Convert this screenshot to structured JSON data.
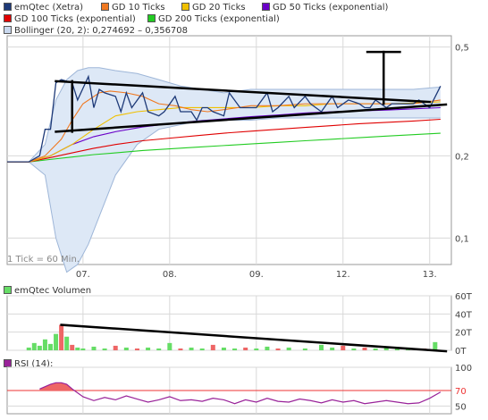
{
  "colors": {
    "price": "#1e3a78",
    "gd10": "#f07820",
    "gd20": "#f0c000",
    "gd50": "#6a00c8",
    "gd100": "#e00000",
    "gd200": "#22cc22",
    "bollinger_fill": "#dde8f6",
    "bollinger_line": "#9eb6d8",
    "volume_up": "#66dd66",
    "volume_down": "#ee6666",
    "rsi_line": "#992299",
    "rsi_fill": "#ee6666",
    "rsi_ref": "#ee3333",
    "grid": "#d8d8d8",
    "trendline": "#000000"
  },
  "legend": {
    "price": "emQtec (Xetra)",
    "gd10": "GD 10 Ticks",
    "gd20": "GD 20 Ticks",
    "gd50": "GD 50 Ticks (exponential)",
    "gd100": "GD 100 Ticks (exponential)",
    "gd200": "GD 200 Ticks (exponential)",
    "bollinger": "Bollinger (20, 2): 0,274692 – 0,356708",
    "volume": "emQtec Volumen",
    "rsi": "RSI (14):"
  },
  "note": "1 Tick = 60 Min.",
  "chart_data": [
    {
      "type": "line",
      "title": "emQtec (Xetra)",
      "x_ticks": [
        "07.",
        "08.",
        "09.",
        "12.",
        "13."
      ],
      "y_ticks": [
        "0,1",
        "0,2",
        "0,5"
      ],
      "y_scale": "log",
      "ylim": [
        0.08,
        0.55
      ],
      "x_range": [
        0,
        82
      ],
      "series": [
        {
          "name": "emQtec (Xetra)",
          "x": [
            0,
            2,
            4,
            6,
            7,
            8,
            9,
            10,
            12,
            13,
            15,
            16,
            17,
            18,
            20,
            21,
            22,
            23,
            25,
            26,
            28,
            29,
            31,
            32,
            34,
            35,
            36,
            37,
            38,
            40,
            41,
            43,
            45,
            46,
            48,
            49,
            50,
            52,
            53,
            55,
            56,
            58,
            60,
            61,
            63,
            65,
            66,
            67,
            68,
            70,
            71,
            73,
            75,
            76,
            77,
            78,
            80
          ],
          "y": [
            0.19,
            0.19,
            0.19,
            0.2,
            0.25,
            0.25,
            0.37,
            0.38,
            0.37,
            0.32,
            0.39,
            0.3,
            0.35,
            0.34,
            0.33,
            0.29,
            0.34,
            0.3,
            0.34,
            0.29,
            0.28,
            0.29,
            0.33,
            0.29,
            0.29,
            0.27,
            0.3,
            0.3,
            0.29,
            0.28,
            0.34,
            0.3,
            0.3,
            0.3,
            0.34,
            0.29,
            0.3,
            0.33,
            0.3,
            0.33,
            0.31,
            0.29,
            0.33,
            0.3,
            0.32,
            0.31,
            0.3,
            0.3,
            0.32,
            0.3,
            0.31,
            0.31,
            0.31,
            0.32,
            0.31,
            0.3,
            0.36
          ]
        },
        {
          "name": "GD 10 Ticks",
          "x": [
            0,
            4,
            7,
            10,
            12,
            14,
            17,
            19,
            22,
            25,
            28,
            31,
            34,
            37,
            40,
            45,
            50,
            55,
            60,
            65,
            70,
            75,
            80
          ],
          "y": [
            0.19,
            0.19,
            0.2,
            0.23,
            0.27,
            0.31,
            0.34,
            0.345,
            0.34,
            0.33,
            0.31,
            0.305,
            0.295,
            0.29,
            0.295,
            0.305,
            0.305,
            0.31,
            0.31,
            0.31,
            0.31,
            0.31,
            0.32
          ]
        },
        {
          "name": "GD 20 Ticks",
          "x": [
            0,
            4,
            8,
            12,
            16,
            20,
            24,
            28,
            32,
            36,
            40,
            45,
            50,
            55,
            60,
            65,
            70,
            75,
            80
          ],
          "y": [
            0.19,
            0.19,
            0.2,
            0.22,
            0.25,
            0.28,
            0.29,
            0.295,
            0.3,
            0.3,
            0.3,
            0.3,
            0.305,
            0.305,
            0.31,
            0.31,
            0.31,
            0.312,
            0.315
          ]
        },
        {
          "name": "GD 50 Ticks (exponential)",
          "x": [
            0,
            4,
            8,
            12,
            16,
            20,
            25,
            30,
            35,
            40,
            45,
            50,
            55,
            60,
            65,
            70,
            75,
            80
          ],
          "y": [
            0.19,
            0.19,
            0.2,
            0.22,
            0.235,
            0.245,
            0.255,
            0.262,
            0.268,
            0.273,
            0.278,
            0.282,
            0.287,
            0.29,
            0.292,
            0.294,
            0.297,
            0.3
          ]
        },
        {
          "name": "GD 100 Ticks (exponential)",
          "x": [
            0,
            4,
            8,
            12,
            16,
            20,
            25,
            30,
            35,
            40,
            45,
            50,
            55,
            60,
            65,
            70,
            75,
            80
          ],
          "y": [
            0.19,
            0.19,
            0.197,
            0.205,
            0.213,
            0.22,
            0.227,
            0.232,
            0.237,
            0.242,
            0.246,
            0.25,
            0.254,
            0.258,
            0.262,
            0.265,
            0.268,
            0.272
          ]
        },
        {
          "name": "GD 200 Ticks (exponential)",
          "x": [
            0,
            4,
            8,
            12,
            16,
            20,
            25,
            30,
            35,
            40,
            45,
            50,
            55,
            60,
            65,
            70,
            75,
            80
          ],
          "y": [
            0.19,
            0.19,
            0.194,
            0.198,
            0.202,
            0.205,
            0.209,
            0.212,
            0.215,
            0.218,
            0.221,
            0.224,
            0.227,
            0.23,
            0.233,
            0.236,
            0.239,
            0.242
          ]
        },
        {
          "name": "Bollinger upper",
          "x": [
            0,
            4,
            7,
            9,
            11,
            13,
            15,
            17,
            20,
            24,
            28,
            32,
            36,
            40,
            45,
            50,
            55,
            60,
            65,
            70,
            75,
            80
          ],
          "y": [
            0.19,
            0.19,
            0.22,
            0.32,
            0.38,
            0.41,
            0.42,
            0.42,
            0.41,
            0.4,
            0.38,
            0.36,
            0.35,
            0.34,
            0.35,
            0.35,
            0.35,
            0.35,
            0.35,
            0.35,
            0.35,
            0.357
          ]
        },
        {
          "name": "Bollinger lower",
          "x": [
            0,
            4,
            7,
            9,
            11,
            13,
            15,
            17,
            20,
            24,
            28,
            32,
            36,
            40,
            45,
            50,
            55,
            60,
            65,
            70,
            75,
            80
          ],
          "y": [
            0.19,
            0.19,
            0.17,
            0.1,
            0.075,
            0.08,
            0.095,
            0.12,
            0.17,
            0.22,
            0.25,
            0.26,
            0.27,
            0.27,
            0.27,
            0.275,
            0.275,
            0.275,
            0.275,
            0.275,
            0.275,
            0.275
          ]
        }
      ]
    },
    {
      "type": "bar",
      "title": "emQtec Volumen",
      "y_ticks": [
        "0T",
        "20T",
        "40T",
        "60T"
      ],
      "ylim": [
        0,
        60
      ],
      "x_range": [
        0,
        82
      ],
      "bars": [
        {
          "x": 4,
          "value": 3,
          "dir": "up"
        },
        {
          "x": 5,
          "value": 8,
          "dir": "up"
        },
        {
          "x": 6,
          "value": 5,
          "dir": "up"
        },
        {
          "x": 7,
          "value": 12,
          "dir": "up"
        },
        {
          "x": 8,
          "value": 7,
          "dir": "up"
        },
        {
          "x": 9,
          "value": 18,
          "dir": "up"
        },
        {
          "x": 10,
          "value": 28,
          "dir": "down"
        },
        {
          "x": 11,
          "value": 15,
          "dir": "up"
        },
        {
          "x": 12,
          "value": 6,
          "dir": "down"
        },
        {
          "x": 13,
          "value": 3,
          "dir": "up"
        },
        {
          "x": 14,
          "value": 2,
          "dir": "up"
        },
        {
          "x": 16,
          "value": 4,
          "dir": "up"
        },
        {
          "x": 18,
          "value": 2,
          "dir": "up"
        },
        {
          "x": 20,
          "value": 5,
          "dir": "down"
        },
        {
          "x": 22,
          "value": 3,
          "dir": "up"
        },
        {
          "x": 24,
          "value": 2,
          "dir": "down"
        },
        {
          "x": 26,
          "value": 3,
          "dir": "up"
        },
        {
          "x": 28,
          "value": 2,
          "dir": "up"
        },
        {
          "x": 30,
          "value": 8,
          "dir": "up"
        },
        {
          "x": 32,
          "value": 2,
          "dir": "down"
        },
        {
          "x": 34,
          "value": 3,
          "dir": "up"
        },
        {
          "x": 36,
          "value": 2,
          "dir": "up"
        },
        {
          "x": 38,
          "value": 6,
          "dir": "down"
        },
        {
          "x": 40,
          "value": 3,
          "dir": "up"
        },
        {
          "x": 42,
          "value": 2,
          "dir": "up"
        },
        {
          "x": 44,
          "value": 3,
          "dir": "down"
        },
        {
          "x": 46,
          "value": 2,
          "dir": "up"
        },
        {
          "x": 48,
          "value": 4,
          "dir": "up"
        },
        {
          "x": 50,
          "value": 2,
          "dir": "down"
        },
        {
          "x": 52,
          "value": 3,
          "dir": "up"
        },
        {
          "x": 55,
          "value": 2,
          "dir": "up"
        },
        {
          "x": 58,
          "value": 6,
          "dir": "up"
        },
        {
          "x": 60,
          "value": 3,
          "dir": "up"
        },
        {
          "x": 62,
          "value": 5,
          "dir": "down"
        },
        {
          "x": 64,
          "value": 2,
          "dir": "up"
        },
        {
          "x": 66,
          "value": 3,
          "dir": "down"
        },
        {
          "x": 68,
          "value": 2,
          "dir": "up"
        },
        {
          "x": 70,
          "value": 3,
          "dir": "up"
        },
        {
          "x": 72,
          "value": 2,
          "dir": "up"
        },
        {
          "x": 74,
          "value": 3,
          "dir": "up"
        },
        {
          "x": 77,
          "value": 2,
          "dir": "down"
        },
        {
          "x": 79,
          "value": 9,
          "dir": "up"
        }
      ]
    },
    {
      "type": "line",
      "title": "RSI (14):",
      "y_ticks": [
        "50",
        "70",
        "100"
      ],
      "ylim": [
        40,
        100
      ],
      "reference_level": 70,
      "x_range": [
        0,
        82
      ],
      "series": [
        {
          "name": "RSI (14):",
          "x": [
            6,
            7,
            8,
            9,
            10,
            11,
            12,
            14,
            16,
            18,
            20,
            22,
            24,
            26,
            28,
            30,
            32,
            34,
            36,
            38,
            40,
            42,
            44,
            46,
            48,
            50,
            52,
            54,
            56,
            58,
            60,
            62,
            64,
            66,
            68,
            70,
            72,
            74,
            76,
            78,
            80
          ],
          "y": [
            72,
            75,
            78,
            80,
            80,
            78,
            72,
            62,
            57,
            61,
            58,
            63,
            59,
            55,
            58,
            62,
            57,
            58,
            56,
            60,
            58,
            53,
            58,
            55,
            60,
            56,
            55,
            59,
            57,
            54,
            58,
            55,
            57,
            53,
            55,
            57,
            55,
            53,
            54,
            60,
            68
          ]
        }
      ]
    }
  ]
}
